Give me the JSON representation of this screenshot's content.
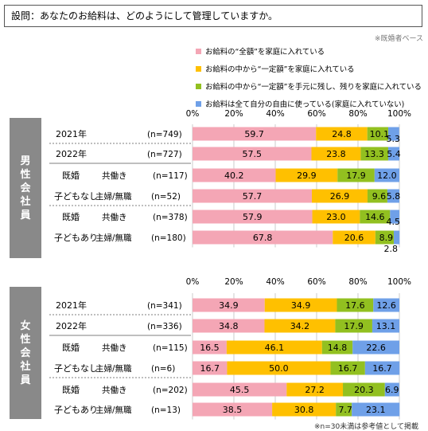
{
  "question": "設問：あなたのお給料は、どのようにして管理していますか。",
  "base_note": "※既婚者ベース",
  "bottom_note": "※n=30未満は参考値として掲載",
  "legend": [
    {
      "label": "お給料の“全額”を家庭に入れている",
      "color": "#F4A6B5"
    },
    {
      "label": "お給料の中から“一定額”を家庭に入れている",
      "color": "#FFC000"
    },
    {
      "label": "お給料の中から“一定額”を手元に残し、残りを家庭に入れている",
      "color": "#92C020"
    },
    {
      "label": "お給料は全て自分の自由に使っている(家庭に入れていない)",
      "color": "#6FA0E8"
    }
  ],
  "chart_data": [
    {
      "type": "bar",
      "stacked": true,
      "orientation": "horizontal",
      "panel": "男性会社員",
      "xlim": [
        0,
        100
      ],
      "xticks": [
        "0%",
        "20%",
        "40%",
        "60%",
        "80%",
        "100%"
      ],
      "rows": [
        {
          "year": "2021年",
          "group": "",
          "sub": "",
          "n": "(n=749)",
          "values": [
            59.7,
            24.8,
            10.1,
            5.3
          ]
        },
        {
          "year": "2022年",
          "group": "",
          "sub": "",
          "n": "(n=727)",
          "values": [
            57.5,
            23.8,
            13.3,
            5.4
          ]
        },
        {
          "year": "",
          "group": "既婚",
          "sub": "共働き",
          "n": "(n=117)",
          "values": [
            40.2,
            29.9,
            17.9,
            12.0
          ]
        },
        {
          "year": "",
          "group": "子どもなし",
          "sub": "主婦/無職",
          "n": "(n=52)",
          "values": [
            57.7,
            26.9,
            9.6,
            5.8
          ]
        },
        {
          "year": "",
          "group": "既婚",
          "sub": "共働き",
          "n": "(n=378)",
          "values": [
            57.9,
            23.0,
            14.6,
            4.5
          ]
        },
        {
          "year": "",
          "group": "子どもあり",
          "sub": "主婦/無職",
          "n": "(n=180)",
          "values": [
            67.8,
            20.6,
            8.9,
            2.8
          ]
        }
      ]
    },
    {
      "type": "bar",
      "stacked": true,
      "orientation": "horizontal",
      "panel": "女性会社員",
      "xlim": [
        0,
        100
      ],
      "xticks": [
        "0%",
        "20%",
        "40%",
        "60%",
        "80%",
        "100%"
      ],
      "rows": [
        {
          "year": "2021年",
          "group": "",
          "sub": "",
          "n": "(n=341)",
          "values": [
            34.9,
            34.9,
            17.6,
            12.6
          ]
        },
        {
          "year": "2022年",
          "group": "",
          "sub": "",
          "n": "(n=336)",
          "values": [
            34.8,
            34.2,
            17.9,
            13.1
          ]
        },
        {
          "year": "",
          "group": "既婚",
          "sub": "共働き",
          "n": "(n=115)",
          "values": [
            16.5,
            46.1,
            14.8,
            22.6
          ]
        },
        {
          "year": "",
          "group": "子どもなし",
          "sub": "主婦/無職",
          "n": "(n=6)",
          "values": [
            16.7,
            50.0,
            16.7,
            16.7
          ]
        },
        {
          "year": "",
          "group": "既婚",
          "sub": "共働き",
          "n": "(n=202)",
          "values": [
            45.5,
            27.2,
            20.3,
            6.9
          ]
        },
        {
          "year": "",
          "group": "子どもあり",
          "sub": "主婦/無職",
          "n": "(n=13)",
          "values": [
            38.5,
            30.8,
            7.7,
            23.1
          ]
        }
      ]
    }
  ]
}
